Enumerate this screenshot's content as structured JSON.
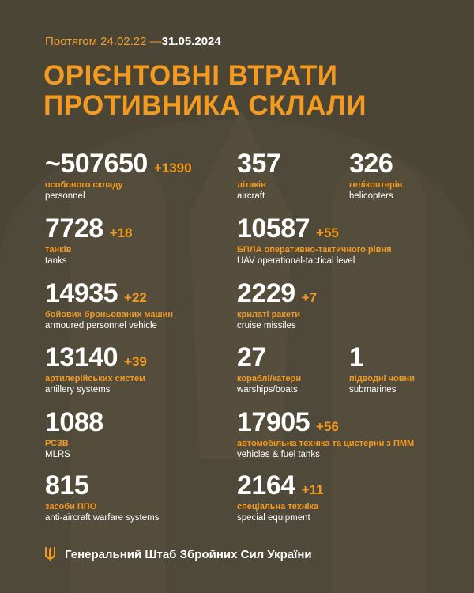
{
  "header": {
    "period_prefix": "Протягом 24.02.22 —",
    "period_end": "31.05.2024",
    "title_line1": "ОРІЄНТОВНІ ВТРАТИ",
    "title_line2": "ПРОТИВНИКА СКЛАЛИ"
  },
  "colors": {
    "background": "#4b4536",
    "accent": "#f39a21",
    "text": "#ffffff"
  },
  "stats": [
    {
      "id": "personnel",
      "value": "~507650",
      "delta": "+1390",
      "ua": "особового складу",
      "en": "personnel"
    },
    {
      "id": "aircraft",
      "value": "357",
      "delta": "",
      "ua": "літаків",
      "en": "aircraft"
    },
    {
      "id": "helicopters",
      "value": "326",
      "delta": "",
      "ua": "гелікоптерів",
      "en": "helicopters"
    },
    {
      "id": "tanks",
      "value": "7728",
      "delta": "+18",
      "ua": "танків",
      "en": "tanks"
    },
    {
      "id": "uav",
      "value": "10587",
      "delta": "+55",
      "ua": "БПЛА оперативно-тактичного рівня",
      "en": "UAV operational-tactical level"
    },
    {
      "id": "apv",
      "value": "14935",
      "delta": "+22",
      "ua": "бойових броньованих машин",
      "en": "armoured personnel vehicle"
    },
    {
      "id": "cruise-missiles",
      "value": "2229",
      "delta": "+7",
      "ua": "крилаті ракети",
      "en": "cruise missiles"
    },
    {
      "id": "artillery",
      "value": "13140",
      "delta": "+39",
      "ua": "артилерійських систем",
      "en": "artillery systems"
    },
    {
      "id": "warships",
      "value": "27",
      "delta": "",
      "ua": "кораблі/катери",
      "en": "warships/boats"
    },
    {
      "id": "submarines",
      "value": "1",
      "delta": "",
      "ua": "підводні човни",
      "en": "submarines"
    },
    {
      "id": "mlrs",
      "value": "1088",
      "delta": "",
      "ua": "РСЗВ",
      "en": "MLRS"
    },
    {
      "id": "vehicles",
      "value": "17905",
      "delta": "+56",
      "ua": "автомобільна техніка та цистерни з ПММ",
      "en": "vehicles & fuel tanks"
    },
    {
      "id": "anti-aircraft",
      "value": "815",
      "delta": "",
      "ua": "засоби ППО",
      "en": "anti-aircraft warfare systems"
    },
    {
      "id": "special-equipment",
      "value": "2164",
      "delta": "+11",
      "ua": "спеціальна техніка",
      "en": "special equipment"
    }
  ],
  "footer": {
    "icon": "trident-icon",
    "text": "Генеральний Штаб Збройних Сил України"
  }
}
